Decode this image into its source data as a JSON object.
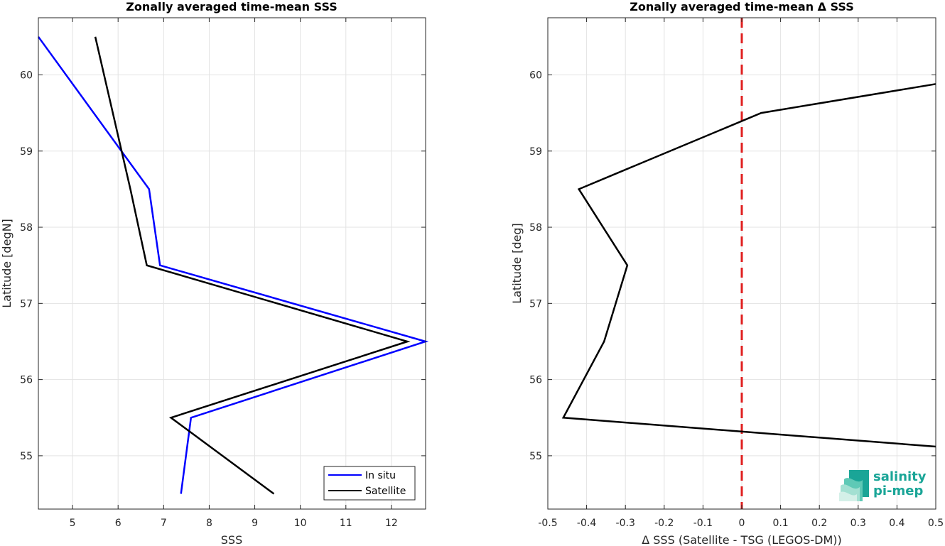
{
  "chart_data": [
    {
      "type": "line",
      "title": "Zonally averaged time-mean SSS",
      "xlabel": "SSS",
      "ylabel": "Latitude [degN]",
      "xlim": [
        4.25,
        12.75
      ],
      "ylim": [
        54.3,
        60.75
      ],
      "xticks": [
        5,
        6,
        7,
        8,
        9,
        10,
        11,
        12
      ],
      "yticks": [
        55,
        56,
        57,
        58,
        59,
        60
      ],
      "grid": true,
      "legend_position": "bottom-right",
      "series": [
        {
          "name": "In situ",
          "color": "#0000ff",
          "x": [
            7.38,
            7.6,
            12.75,
            6.92,
            6.68,
            4.25
          ],
          "y": [
            54.5,
            55.5,
            56.5,
            57.5,
            58.5,
            60.5
          ]
        },
        {
          "name": "Satellite",
          "color": "#000000",
          "x": [
            9.42,
            7.16,
            12.35,
            6.63,
            6.27,
            5.5
          ],
          "y": [
            54.5,
            55.5,
            56.5,
            57.5,
            58.5,
            60.5
          ]
        }
      ]
    },
    {
      "type": "line",
      "title": "Zonally averaged time-mean Δ SSS",
      "xlabel": "Δ SSS (Satellite - TSG (LEGOS-DM))",
      "ylabel": "Latitude [deg]",
      "xlim": [
        -0.5,
        0.5
      ],
      "ylim": [
        54.3,
        60.75
      ],
      "xticks": [
        "-0.5",
        "-0.4",
        "-0.3",
        "-0.2",
        "-0.1",
        "0",
        "0.1",
        "0.2",
        "0.3",
        "0.4",
        "0.5"
      ],
      "yticks": [
        55,
        56,
        57,
        58,
        59,
        60
      ],
      "grid": true,
      "reference_line": {
        "x": 0,
        "color": "#e02020",
        "style": "dashed"
      },
      "series": [
        {
          "color": "#000000",
          "x": [
            0.5,
            -0.46,
            -0.355,
            -0.295,
            -0.42,
            0.05,
            0.5
          ],
          "y": [
            55.12,
            55.5,
            56.5,
            57.5,
            58.5,
            59.5,
            59.88
          ]
        }
      ]
    }
  ],
  "logo": {
    "line1": "salinity",
    "line2": "pi-mep",
    "colors": [
      "#1aa597",
      "#5fc9b6",
      "#a3e0d2",
      "#d4f0e8"
    ]
  }
}
